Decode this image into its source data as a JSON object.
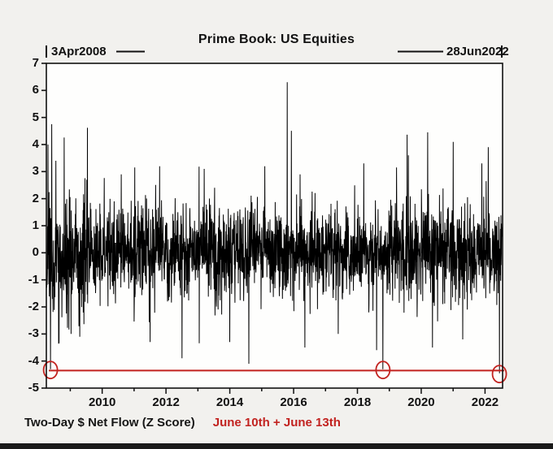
{
  "page": {
    "background": "#f2f1ee",
    "plot_background": "#fefefd",
    "axis_color": "#111111"
  },
  "chart_data": {
    "type": "line",
    "title": "Prime Book: US Equities",
    "start_label": "3Apr2008",
    "end_label": "28Jun2022",
    "caption": "Two-Day $ Net Flow (Z Score)",
    "caption_highlight": "June 10th + June 13th",
    "highlight_color": "#c22320",
    "series_color": "#000000",
    "x_range": [
      2008.25,
      2022.55
    ],
    "ylim": [
      -5,
      7
    ],
    "yticks": [
      7,
      6,
      5,
      4,
      3,
      2,
      1,
      0,
      -1,
      -2,
      -3,
      -4,
      -5
    ],
    "xticks": [
      2010,
      2012,
      2014,
      2016,
      2018,
      2020,
      2022
    ],
    "minor_xticks": [
      2009,
      2010,
      2011,
      2012,
      2013,
      2014,
      2015,
      2016,
      2017,
      2018,
      2019,
      2020,
      2021,
      2022
    ],
    "grid": false,
    "legend": "none",
    "reference_line": {
      "y": -4.35,
      "color": "#c22320"
    },
    "circled_points": [
      {
        "x": 2008.38,
        "y": -4.3
      },
      {
        "x": 2018.8,
        "y": -4.3
      },
      {
        "x": 2022.45,
        "y": -4.45
      }
    ],
    "notable_points": [
      {
        "x": 2008.3,
        "y": 4.0
      },
      {
        "x": 2008.42,
        "y": 4.75
      },
      {
        "x": 2008.55,
        "y": 3.4
      },
      {
        "x": 2009.3,
        "y": -3.1
      },
      {
        "x": 2010.6,
        "y": 2.9
      },
      {
        "x": 2011.5,
        "y": -3.3
      },
      {
        "x": 2011.8,
        "y": 3.2
      },
      {
        "x": 2012.5,
        "y": -3.9
      },
      {
        "x": 2013.2,
        "y": 3.1
      },
      {
        "x": 2014.0,
        "y": -3.3
      },
      {
        "x": 2014.6,
        "y": -4.1
      },
      {
        "x": 2015.1,
        "y": 3.2
      },
      {
        "x": 2015.8,
        "y": 6.3
      },
      {
        "x": 2016.2,
        "y": 2.9
      },
      {
        "x": 2016.35,
        "y": -3.5
      },
      {
        "x": 2017.4,
        "y": -3.0
      },
      {
        "x": 2018.2,
        "y": 3.3
      },
      {
        "x": 2018.6,
        "y": -3.6
      },
      {
        "x": 2019.6,
        "y": 3.6
      },
      {
        "x": 2020.2,
        "y": 4.45
      },
      {
        "x": 2020.35,
        "y": -3.5
      },
      {
        "x": 2021.0,
        "y": 4.1
      },
      {
        "x": 2021.3,
        "y": -3.2
      },
      {
        "x": 2021.9,
        "y": 3.3
      },
      {
        "x": 2022.1,
        "y": 3.9
      }
    ],
    "noise": {
      "seed": 1337,
      "n": 2200,
      "sigma": 0.82,
      "spike_prob": 0.03,
      "spike_scale": 2.1,
      "early_widen_until": 2009.6,
      "early_widen_factor": 1.45
    }
  }
}
